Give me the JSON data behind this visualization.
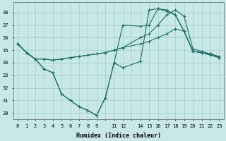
{
  "xlabel": "Humidex (Indice chaleur)",
  "bg_color": "#c8e8e8",
  "line_color": "#1a6e64",
  "grid_color": "#a8d0d0",
  "xlim": [
    -0.5,
    23.5
  ],
  "ylim": [
    29.5,
    38.8
  ],
  "yticks": [
    30,
    31,
    32,
    33,
    34,
    35,
    36,
    37,
    38
  ],
  "xtick_labels": [
    "0",
    "1",
    "2",
    "3",
    "4",
    "5",
    "6",
    "7",
    "8",
    "9",
    "",
    "11",
    "12",
    "",
    "14",
    "15",
    "16",
    "17",
    "18",
    "19",
    "20",
    "21",
    "22",
    "23"
  ],
  "series": [
    {
      "x": [
        0,
        1,
        2,
        3,
        4,
        5,
        6,
        7,
        8,
        9,
        10,
        11,
        12,
        14,
        15,
        16,
        17,
        18,
        19,
        20,
        21,
        22,
        23
      ],
      "y": [
        35.5,
        34.8,
        34.3,
        34.3,
        34.2,
        34.3,
        34.4,
        34.5,
        34.6,
        34.7,
        34.8,
        35.0,
        35.2,
        35.5,
        35.7,
        36.0,
        36.3,
        36.7,
        36.5,
        34.9,
        34.8,
        34.6,
        34.4
      ]
    },
    {
      "x": [
        0,
        1,
        2,
        3,
        4,
        5,
        6,
        7,
        8,
        9,
        10,
        11,
        12,
        14,
        15,
        16,
        17,
        18,
        19,
        20,
        21,
        22,
        23
      ],
      "y": [
        35.5,
        34.8,
        34.3,
        34.3,
        34.2,
        34.3,
        34.4,
        34.5,
        34.6,
        34.7,
        34.8,
        35.0,
        35.2,
        36.0,
        36.3,
        37.0,
        37.8,
        38.2,
        37.7,
        35.1,
        34.9,
        34.7,
        34.5
      ]
    },
    {
      "x": [
        0,
        1,
        2,
        3,
        4,
        5,
        6,
        7,
        8,
        9,
        10,
        11,
        12,
        14,
        15,
        16,
        17,
        18,
        19,
        20,
        21,
        22,
        23
      ],
      "y": [
        35.5,
        34.8,
        34.3,
        33.5,
        33.2,
        31.5,
        31.0,
        30.5,
        30.2,
        29.8,
        31.2,
        34.0,
        33.6,
        34.1,
        38.2,
        38.3,
        38.1,
        37.8,
        36.5,
        34.9,
        34.8,
        34.7,
        34.4
      ]
    },
    {
      "x": [
        0,
        1,
        2,
        3,
        4,
        5,
        6,
        7,
        8,
        9,
        10,
        11,
        12,
        14,
        15,
        16,
        17,
        18,
        19,
        20,
        21,
        22,
        23
      ],
      "y": [
        35.5,
        34.8,
        34.3,
        33.5,
        33.2,
        31.5,
        31.0,
        30.5,
        30.2,
        29.8,
        31.2,
        34.0,
        37.0,
        36.9,
        37.0,
        38.3,
        38.2,
        37.8,
        36.5,
        34.9,
        34.8,
        34.7,
        34.4
      ]
    }
  ]
}
